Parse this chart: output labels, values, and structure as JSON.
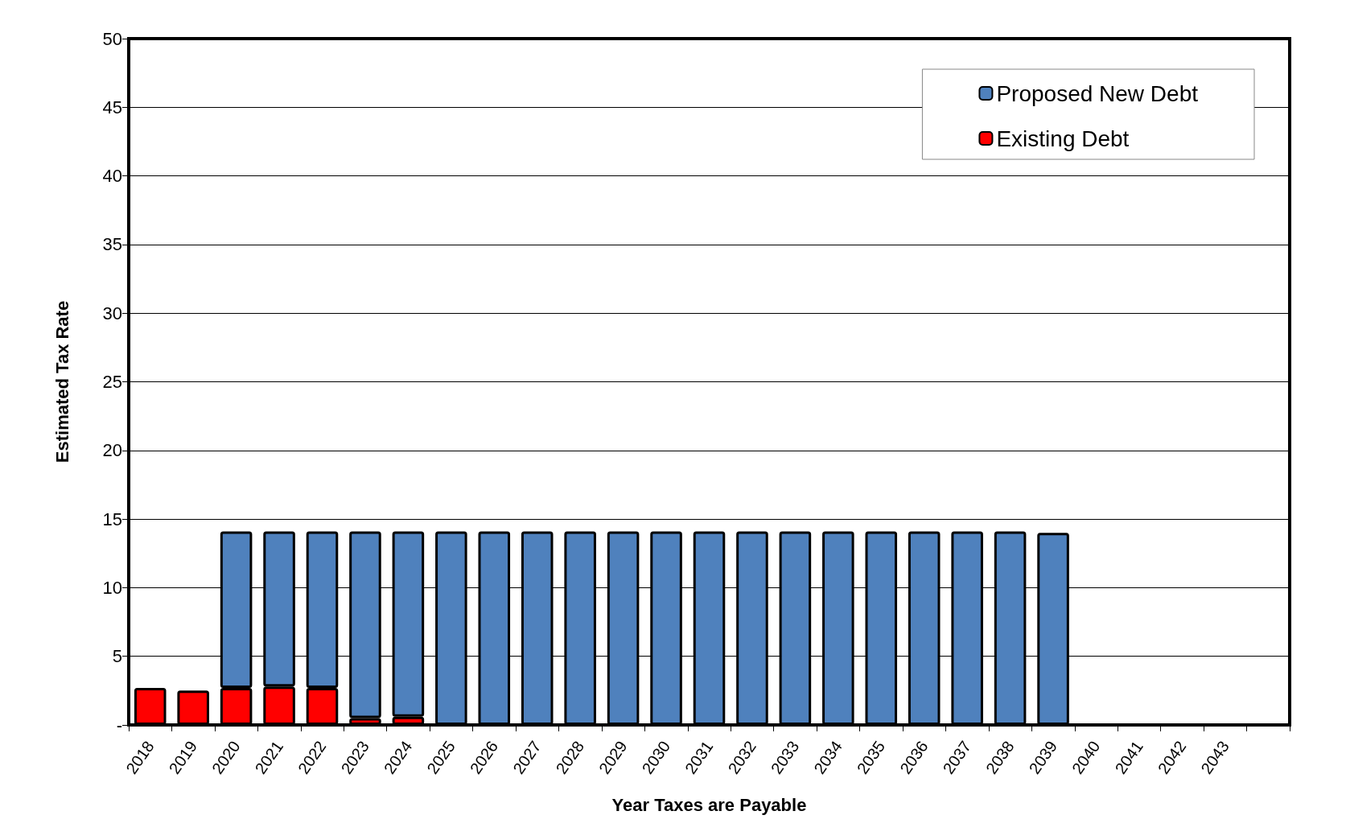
{
  "chart_data": {
    "type": "bar",
    "xlabel": "Year Taxes are Payable",
    "ylabel": "Estimated Tax Rate",
    "categories": [
      "2018",
      "2019",
      "2020",
      "2021",
      "2022",
      "2023",
      "2024",
      "2025",
      "2026",
      "2027",
      "2028",
      "2029",
      "2030",
      "2031",
      "2032",
      "2033",
      "2034",
      "2035",
      "2036",
      "2037",
      "2038",
      "2039",
      "2040",
      "2041",
      "2042",
      "2043",
      null
    ],
    "stacked": true,
    "series": [
      {
        "name": "Existing Debt",
        "color": "#ff0000",
        "values": [
          2.7,
          2.5,
          2.7,
          2.8,
          2.7,
          0.5,
          0.6,
          null,
          null,
          null,
          null,
          null,
          null,
          null,
          null,
          null,
          null,
          null,
          null,
          null,
          null,
          null,
          null,
          null,
          null,
          null,
          null
        ]
      },
      {
        "name": "Proposed New Debt",
        "color": "#4f81bd",
        "values": [
          null,
          null,
          11.4,
          11.3,
          11.4,
          13.6,
          13.5,
          14.1,
          14.1,
          14.1,
          14.1,
          14.1,
          14.1,
          14.1,
          14.1,
          14.1,
          14.1,
          14.1,
          14.1,
          14.1,
          14.1,
          14.0,
          null,
          null,
          null,
          null,
          null
        ]
      }
    ],
    "ylim": [
      0,
      50
    ],
    "yticks": [
      {
        "value": 0,
        "label": "-"
      },
      5,
      10,
      15,
      20,
      25,
      30,
      35,
      40,
      45,
      50
    ],
    "grid": "y",
    "legend": "top right"
  }
}
